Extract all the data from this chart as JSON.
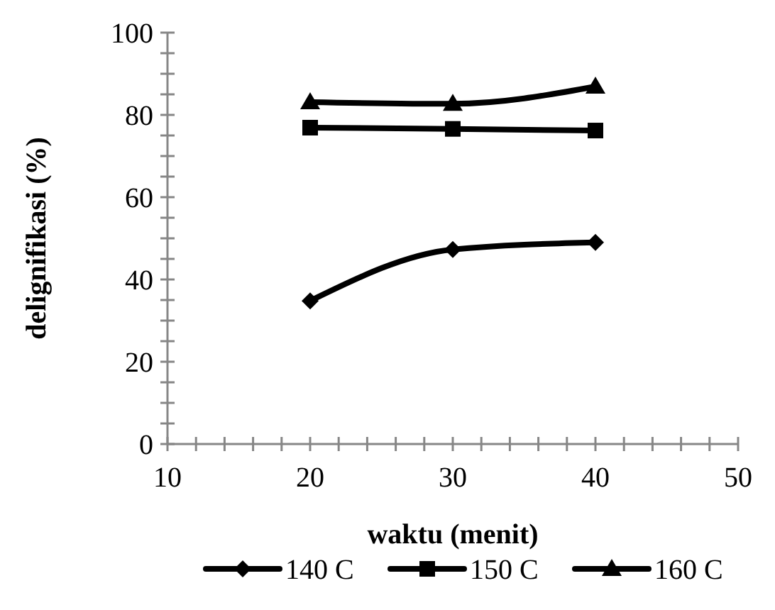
{
  "chart_data": {
    "type": "line",
    "xlabel": "waktu (menit)",
    "ylabel": "delignifikasi (%)",
    "x": [
      20,
      30,
      40
    ],
    "xlim": [
      10,
      50
    ],
    "ylim": [
      0,
      100
    ],
    "xticks": [
      10,
      {
        "value": 12,
        "label": null
      },
      {
        "value": 14,
        "label": null
      },
      {
        "value": 16,
        "label": null
      },
      {
        "value": 18,
        "label": null
      },
      20,
      {
        "value": 22,
        "label": null
      },
      {
        "value": 24,
        "label": null
      },
      {
        "value": 26,
        "label": null
      },
      {
        "value": 28,
        "label": null
      },
      30,
      {
        "value": 32,
        "label": null
      },
      {
        "value": 34,
        "label": null
      },
      {
        "value": 36,
        "label": null
      },
      {
        "value": 38,
        "label": null
      },
      40,
      {
        "value": 42,
        "label": null
      },
      {
        "value": 44,
        "label": null
      },
      {
        "value": 46,
        "label": null
      },
      {
        "value": 48,
        "label": null
      },
      50
    ],
    "yticks": [
      0,
      {
        "value": 5,
        "label": null
      },
      {
        "value": 10,
        "label": null
      },
      {
        "value": 15,
        "label": null
      },
      20,
      {
        "value": 25,
        "label": null
      },
      {
        "value": 30,
        "label": null
      },
      {
        "value": 35,
        "label": null
      },
      40,
      {
        "value": 45,
        "label": null
      },
      {
        "value": 50,
        "label": null
      },
      {
        "value": 55,
        "label": null
      },
      60,
      {
        "value": 65,
        "label": null
      },
      {
        "value": 70,
        "label": null
      },
      {
        "value": 75,
        "label": null
      },
      80,
      {
        "value": 85,
        "label": null
      },
      {
        "value": 90,
        "label": null
      },
      {
        "value": 95,
        "label": null
      },
      100
    ],
    "legend": "bottom",
    "line_style": "solid",
    "series": [
      {
        "name": "140 C",
        "color": "#000000",
        "marker": "diamond",
        "values": [
          34.8,
          47.3,
          49
        ]
      },
      {
        "name": "150 C",
        "color": "#000000",
        "marker": "square",
        "values": [
          76.9,
          76.6,
          76.2
        ]
      },
      {
        "name": "160 C",
        "color": "#000000",
        "marker": "triangle",
        "values": [
          83.1,
          82.7,
          86.9
        ]
      }
    ]
  }
}
